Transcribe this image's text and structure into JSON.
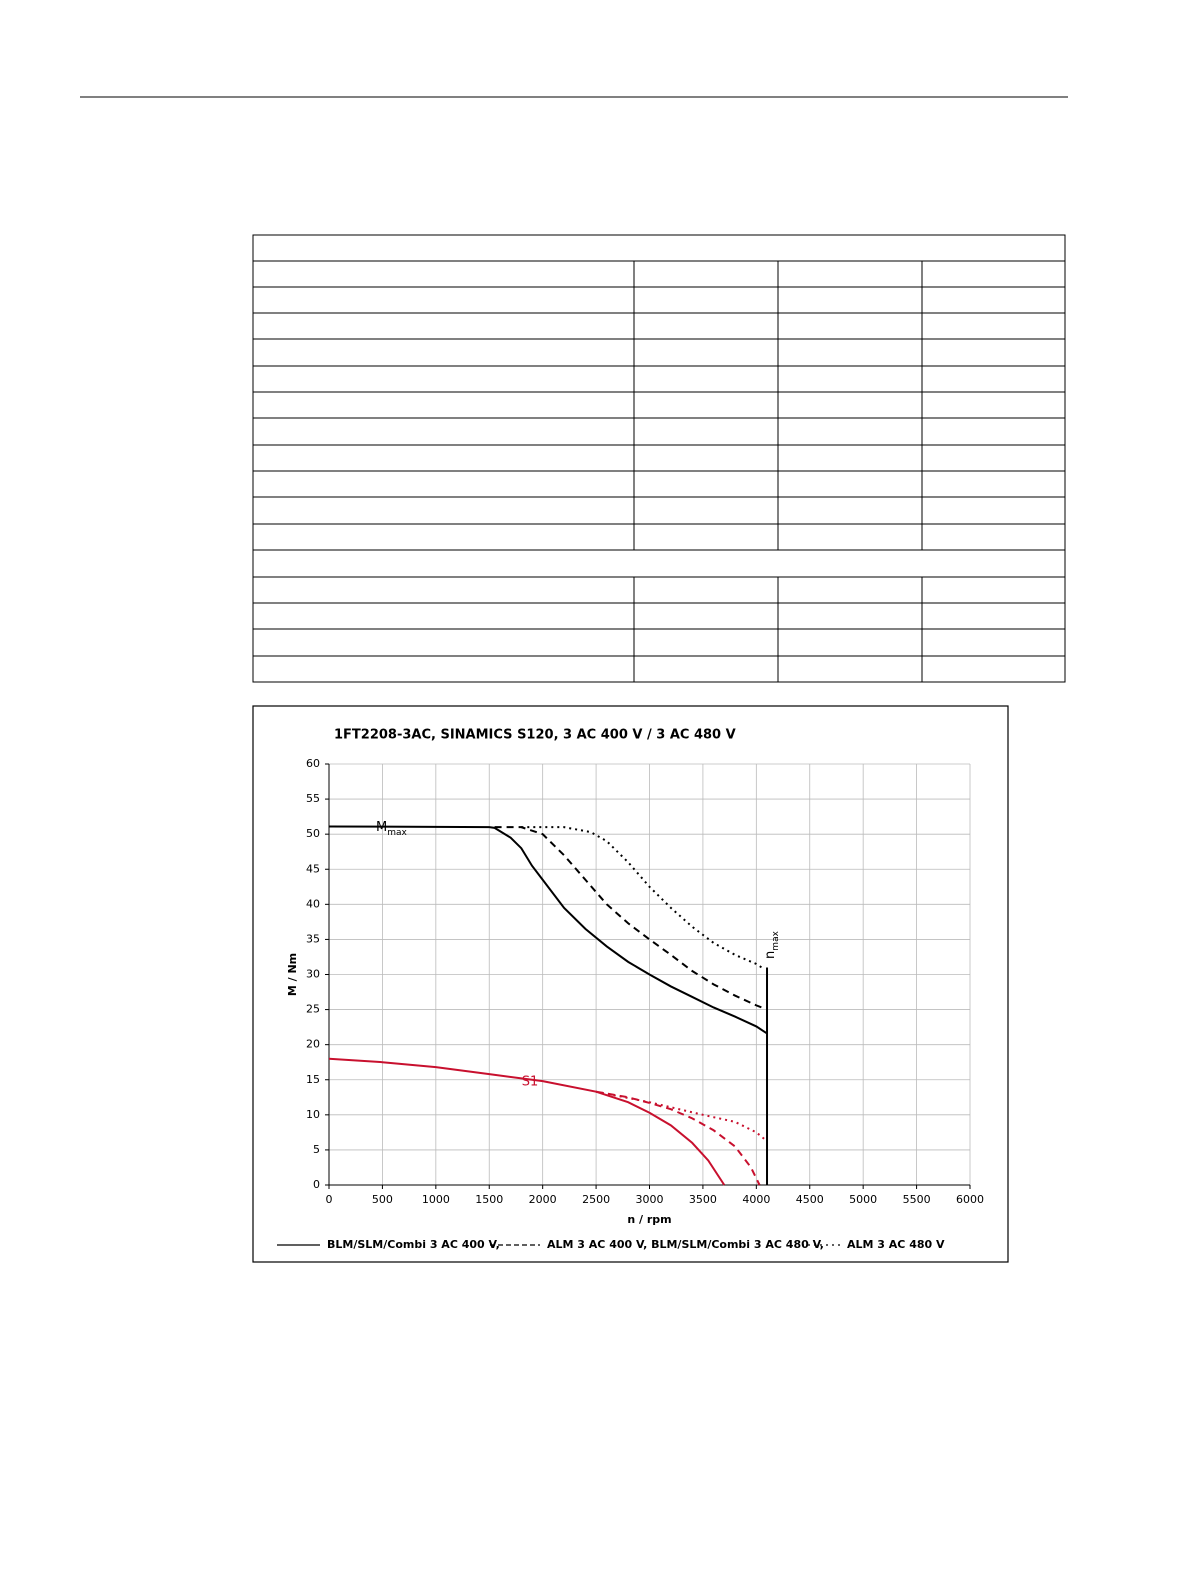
{
  "chart_data": {
    "type": "line",
    "title": "1FT2208-3AC,  SINAMICS S120,  3 AC 400 V / 3 AC 480 V",
    "x_label": "n / rpm",
    "y_label": "M / Nm",
    "xlim": [
      0,
      6000
    ],
    "xticks": [
      0,
      500,
      1000,
      1500,
      2000,
      2500,
      3000,
      3500,
      4000,
      4500,
      5000,
      5500,
      6000
    ],
    "ylim": [
      0,
      60
    ],
    "yticks": [
      0,
      5,
      10,
      15,
      20,
      25,
      30,
      35,
      40,
      45,
      50,
      55,
      60
    ],
    "grid": true,
    "annotations": {
      "mmax": {
        "text": "M",
        "sub": "max"
      },
      "nmax": {
        "text": "n",
        "sub": "max"
      },
      "s1": "S1"
    },
    "series": [
      {
        "name": "BLM/SLM/Combi 3 AC 400 V,",
        "color": "#000000",
        "style": "solid",
        "x": [
          0,
          1500,
          1550,
          1700,
          1800,
          1900,
          2000,
          2200,
          2400,
          2600,
          2800,
          3000,
          3200,
          3400,
          3600,
          3800,
          4000,
          4100
        ],
        "values": [
          51.1,
          51,
          50.9,
          49.5,
          48,
          45.5,
          43.5,
          39.5,
          36.5,
          34,
          31.8,
          30,
          28.3,
          26.8,
          25.3,
          24,
          22.6,
          21.6
        ]
      },
      {
        "name": "ALM 3 AC 400 V, BLM/SLM/Combi 3 AC 480 V,",
        "color": "#000000",
        "style": "dashed",
        "x": [
          1550,
          1800,
          2000,
          2200,
          2400,
          2600,
          2800,
          3000,
          3200,
          3400,
          3600,
          3800,
          4000,
          4050
        ],
        "values": [
          51,
          51,
          50,
          47,
          43.5,
          40,
          37.3,
          35,
          32.8,
          30.5,
          28.6,
          27,
          25.6,
          25.3
        ]
      },
      {
        "name": "ALM 3 AC 480 V",
        "color": "#000000",
        "style": "dotted",
        "x": [
          1800,
          2200,
          2450,
          2600,
          2800,
          3000,
          3200,
          3400,
          3600,
          3800,
          4000,
          4050
        ],
        "values": [
          51,
          51,
          50.3,
          49,
          46,
          42.5,
          39.5,
          36.8,
          34.5,
          32.8,
          31.5,
          31
        ]
      },
      {
        "color": "#c8102e",
        "style": "solid",
        "x": [
          0,
          500,
          1000,
          1500,
          2000,
          2500,
          2800,
          3000,
          3200,
          3400,
          3550,
          3700
        ],
        "values": [
          18,
          17.5,
          16.8,
          15.8,
          14.8,
          13.3,
          11.8,
          10.3,
          8.5,
          6,
          3.5,
          0
        ]
      },
      {
        "color": "#c8102e",
        "style": "dashed",
        "x": [
          2500,
          2800,
          3000,
          3200,
          3400,
          3600,
          3800,
          3950,
          4030
        ],
        "values": [
          13.3,
          12.5,
          11.7,
          10.8,
          9.5,
          7.8,
          5.5,
          2.5,
          0
        ]
      },
      {
        "color": "#c8102e",
        "style": "dotted",
        "x": [
          2500,
          3000,
          3500,
          3800,
          4000,
          4080
        ],
        "values": [
          13.3,
          11.8,
          10,
          9,
          7.5,
          6.5
        ]
      },
      {
        "color": "#000000",
        "style": "solid",
        "x": [
          4100,
          4100
        ],
        "values": [
          0,
          31
        ]
      }
    ]
  }
}
